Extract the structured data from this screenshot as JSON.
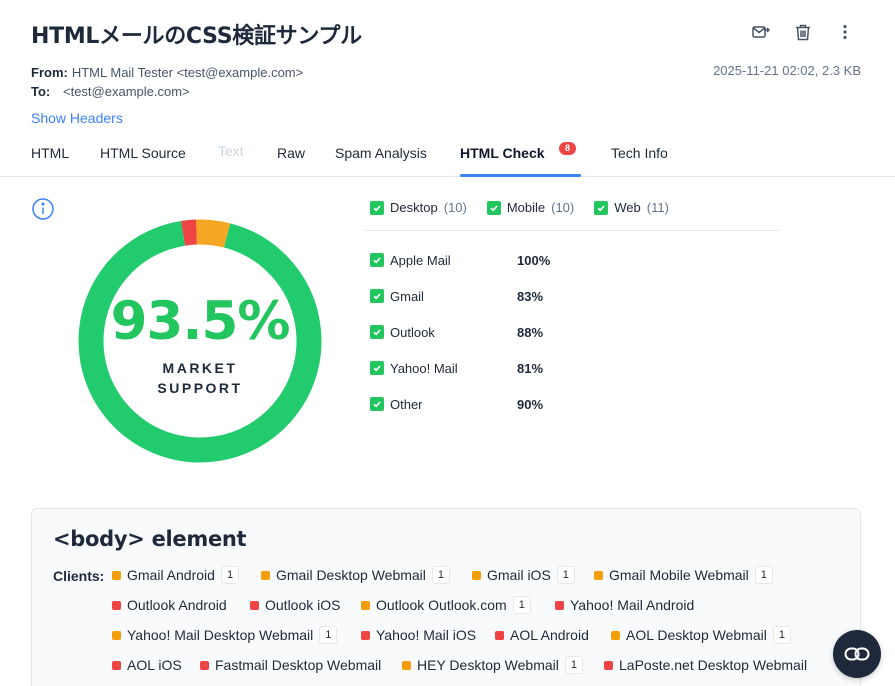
{
  "email": {
    "subject": "HTMLメールのCSS検証サンプル",
    "from_label": "From:",
    "from_value": "HTML Mail Tester <test@example.com>",
    "to_label": "To:",
    "to_value": "<test@example.com>",
    "date_size": "2025-11-21 02:02, 2.3 KB",
    "show_headers": "Show Headers"
  },
  "toolbar": {
    "icons": [
      "forward-mail-icon",
      "trash-icon",
      "more-vertical-icon"
    ]
  },
  "tabs": [
    {
      "label": "HTML"
    },
    {
      "label": "HTML Source"
    },
    {
      "label": "Text"
    },
    {
      "label": "Raw"
    },
    {
      "label": "Spam Analysis"
    },
    {
      "label": "HTML Check",
      "badge": "8"
    },
    {
      "label": "Tech Info"
    }
  ],
  "market_support": {
    "percent": "93.5%",
    "label_line1": "MARKET",
    "label_line2": "SUPPORT",
    "segments": [
      {
        "status": "supported",
        "fraction": 0.935,
        "color": "#22cc6e"
      },
      {
        "status": "partial",
        "fraction": 0.045,
        "color": "#f5a623"
      },
      {
        "status": "unsupported",
        "fraction": 0.02,
        "color": "#ef4444"
      }
    ]
  },
  "filters": [
    {
      "label": "Desktop",
      "count": "(10)"
    },
    {
      "label": "Mobile",
      "count": "(10)"
    },
    {
      "label": "Web",
      "count": "(11)"
    }
  ],
  "clients": [
    {
      "name": "Apple Mail",
      "percent": "100%"
    },
    {
      "name": "Gmail",
      "percent": "83%"
    },
    {
      "name": "Outlook",
      "percent": "88%"
    },
    {
      "name": "Yahoo! Mail",
      "percent": "81%"
    },
    {
      "name": "Other",
      "percent": "90%"
    }
  ],
  "panel": {
    "title": "<body> element",
    "clients_label": "Clients:",
    "chips": [
      {
        "name": "Gmail Android",
        "status": "partial",
        "count": "1"
      },
      {
        "name": "Gmail Desktop Webmail",
        "status": "partial",
        "count": "1"
      },
      {
        "name": "Gmail iOS",
        "status": "partial",
        "count": "1"
      },
      {
        "name": "Gmail Mobile Webmail",
        "status": "partial",
        "count": "1"
      },
      {
        "name": "Outlook Android",
        "status": "unsupported"
      },
      {
        "name": "Outlook iOS",
        "status": "unsupported"
      },
      {
        "name": "Outlook Outlook.com",
        "status": "partial",
        "count": "1"
      },
      {
        "name": "Yahoo! Mail Android",
        "status": "unsupported"
      },
      {
        "name": "Yahoo! Mail Desktop Webmail",
        "status": "partial",
        "count": "1"
      },
      {
        "name": "Yahoo! Mail iOS",
        "status": "unsupported"
      },
      {
        "name": "AOL Android",
        "status": "unsupported"
      },
      {
        "name": "AOL Desktop Webmail",
        "status": "partial",
        "count": "1"
      },
      {
        "name": "AOL iOS",
        "status": "unsupported"
      },
      {
        "name": "Fastmail Desktop Webmail",
        "status": "unsupported"
      },
      {
        "name": "HEY Desktop Webmail",
        "status": "partial",
        "count": "1"
      },
      {
        "name": "LaPoste.net Desktop Webmail",
        "status": "unsupported"
      }
    ]
  },
  "fab": {
    "icon": "link-icon"
  }
}
